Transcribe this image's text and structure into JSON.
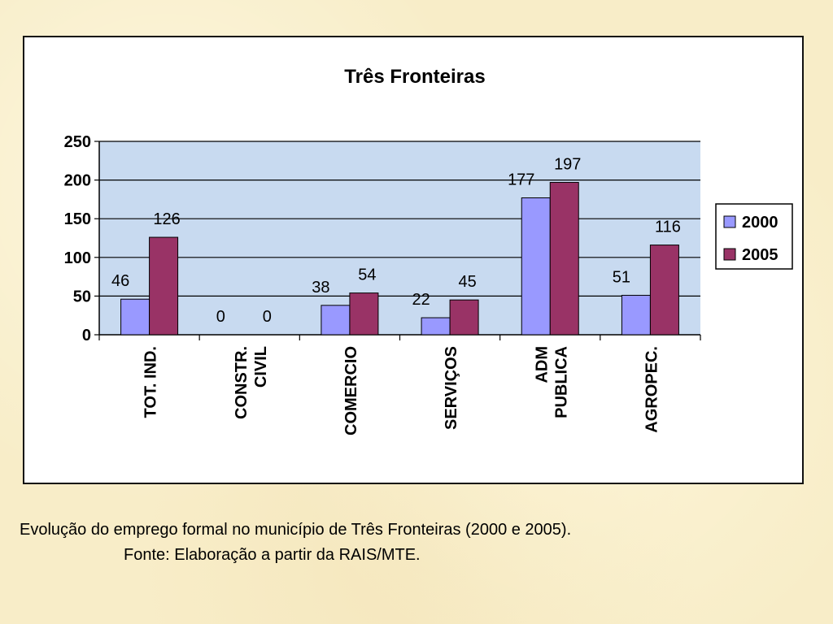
{
  "chart_data": {
    "type": "bar",
    "title": "Três Fronteiras",
    "categories": [
      [
        "TOT. IND."
      ],
      [
        "CONSTR.",
        "CIVIL"
      ],
      [
        "COMERCIO"
      ],
      [
        "SERVIÇOS"
      ],
      [
        "ADM",
        "PUBLICA"
      ],
      [
        "AGROPEC."
      ]
    ],
    "series": [
      {
        "name": "2000",
        "values": [
          46,
          0,
          38,
          22,
          177,
          51
        ],
        "color": "#9999ff"
      },
      {
        "name": "2005",
        "values": [
          126,
          0,
          54,
          45,
          197,
          116
        ],
        "color": "#993366"
      }
    ],
    "ylim": [
      0,
      250
    ],
    "yticks": [
      0,
      50,
      100,
      150,
      200,
      250
    ],
    "grid": true,
    "legend": "right",
    "plot_background": "#c8daf0"
  },
  "caption": {
    "line1": "Evolução do emprego formal no município de Três Fronteiras (2000 e 2005).",
    "line2": "Fonte: Elaboração  a partir da RAIS/MTE."
  }
}
